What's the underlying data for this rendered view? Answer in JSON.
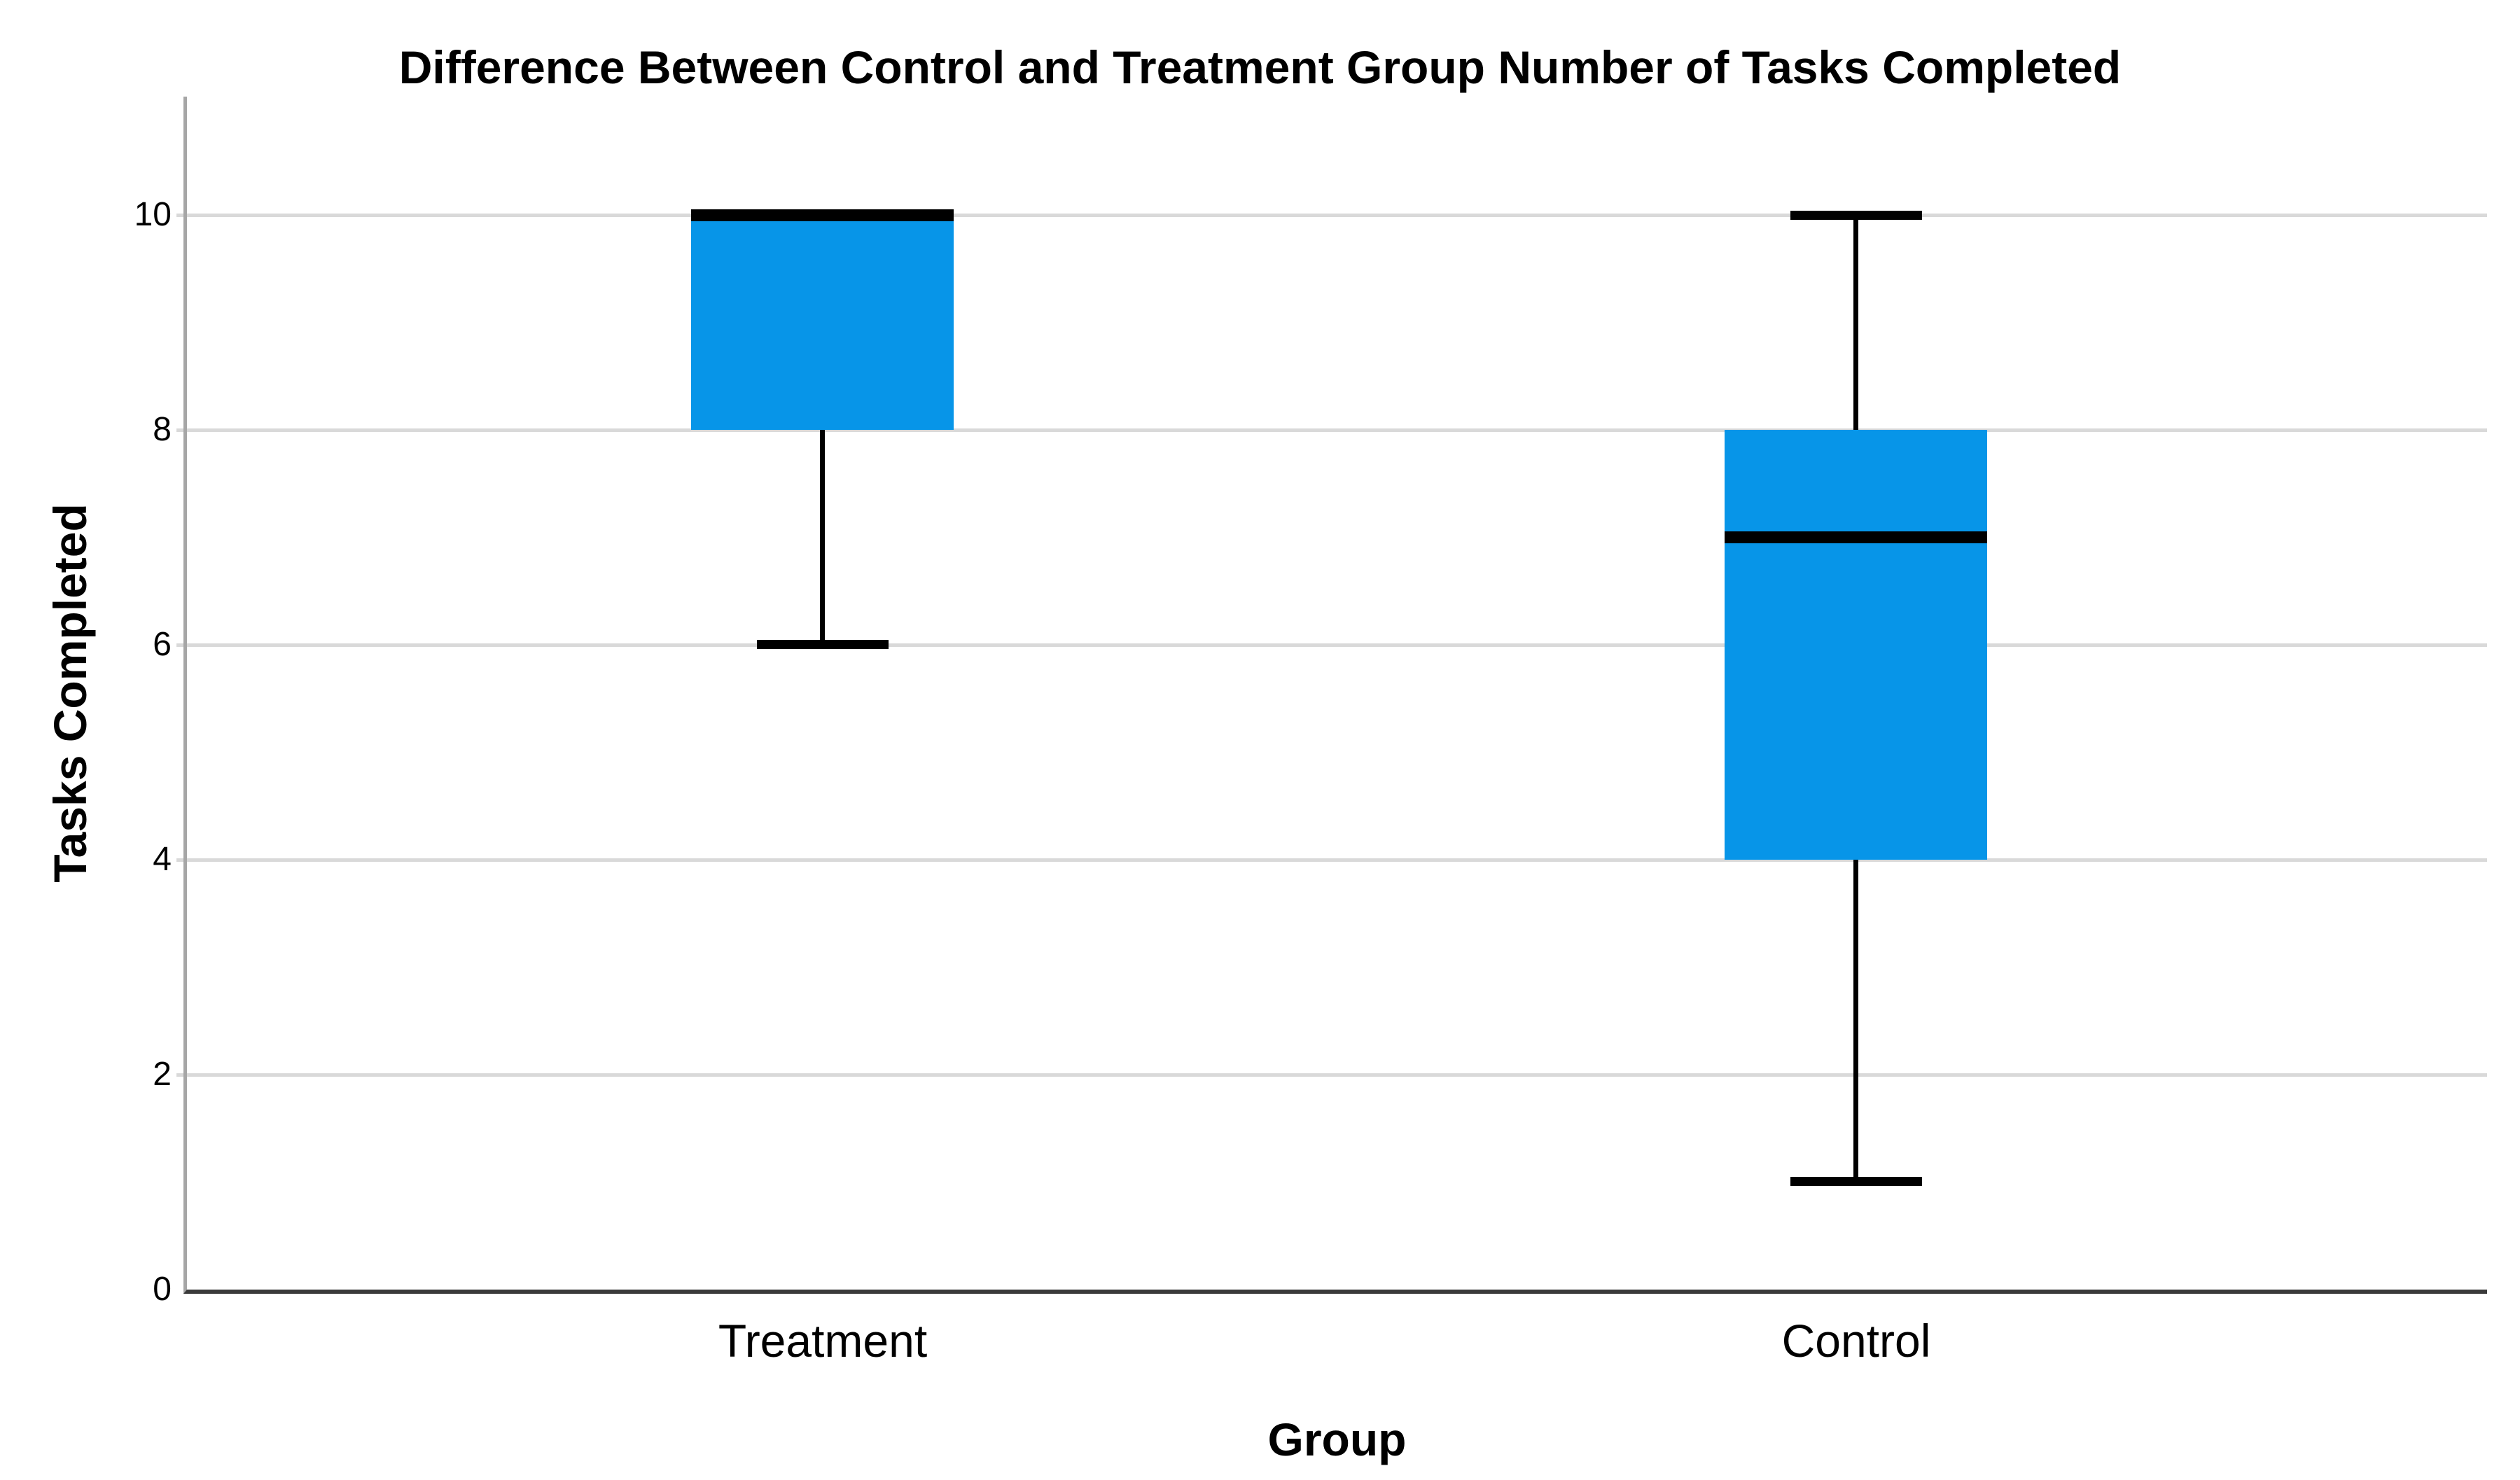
{
  "title": "Difference Between Control and Treatment Group Number of Tasks Completed",
  "y_axis": {
    "label": "Tasks Completed",
    "tick_labels": [
      "0",
      "2",
      "4",
      "6",
      "8",
      "10"
    ]
  },
  "x_axis": {
    "label": "Group",
    "categories": [
      "Treatment",
      "Control"
    ]
  },
  "chart_data": {
    "type": "boxplot",
    "title": "Difference Between Control and Treatment Group Number of Tasks Completed",
    "xlabel": "Group",
    "ylabel": "Tasks Completed",
    "categories": [
      "Treatment",
      "Control"
    ],
    "yticks": [
      0,
      2,
      4,
      6,
      8,
      10
    ],
    "ylim": [
      0,
      11.1
    ],
    "grid": "horizontal",
    "legend": "none",
    "series": [
      {
        "name": "Treatment",
        "whisker_low": 6,
        "q1": 8,
        "median": 10,
        "q3": 10,
        "whisker_high": 10,
        "outliers": []
      },
      {
        "name": "Control",
        "whisker_low": 1,
        "q1": 4,
        "median": 7,
        "q3": 8,
        "whisker_high": 10,
        "outliers": []
      }
    ]
  },
  "colors": {
    "box_fill": "#0795E8",
    "box_line": "#000000",
    "gridline": "#D9D9D9",
    "y_axis_line": "#A6A6A6",
    "x_axis_line": "#3A3A3A",
    "background": "#FFFFFF",
    "text": "#000000"
  }
}
